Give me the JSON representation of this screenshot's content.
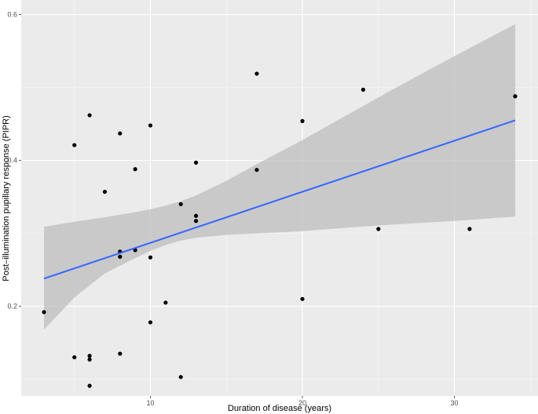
{
  "chart_data": {
    "type": "scatter",
    "xlabel": "Duration of disease (years)",
    "ylabel": "Post–illumination pupillary response (PIPR)",
    "xlim": [
      1.5,
      35.5
    ],
    "ylim": [
      0.077,
      0.62
    ],
    "x_ticks": [
      10,
      20,
      30
    ],
    "x_minor_ticks": [
      5,
      15,
      25,
      35
    ],
    "y_ticks": [
      0.2,
      0.4,
      0.6
    ],
    "y_minor_ticks": [
      0.1,
      0.3,
      0.5
    ],
    "x_tick_labels": [
      "10",
      "20",
      "30"
    ],
    "y_tick_labels": [
      "0.2",
      "0.4",
      "0.6"
    ],
    "grid": true,
    "points": [
      {
        "x": 3,
        "y": 0.192
      },
      {
        "x": 5,
        "y": 0.421
      },
      {
        "x": 5,
        "y": 0.13
      },
      {
        "x": 6,
        "y": 0.462
      },
      {
        "x": 6,
        "y": 0.132
      },
      {
        "x": 6,
        "y": 0.127
      },
      {
        "x": 6,
        "y": 0.091
      },
      {
        "x": 7,
        "y": 0.357
      },
      {
        "x": 8,
        "y": 0.437
      },
      {
        "x": 8,
        "y": 0.275
      },
      {
        "x": 8,
        "y": 0.268
      },
      {
        "x": 8,
        "y": 0.135
      },
      {
        "x": 9,
        "y": 0.388
      },
      {
        "x": 9,
        "y": 0.277
      },
      {
        "x": 10,
        "y": 0.448
      },
      {
        "x": 10,
        "y": 0.267
      },
      {
        "x": 10,
        "y": 0.178
      },
      {
        "x": 11,
        "y": 0.205
      },
      {
        "x": 12,
        "y": 0.34
      },
      {
        "x": 12,
        "y": 0.103
      },
      {
        "x": 13,
        "y": 0.397
      },
      {
        "x": 13,
        "y": 0.324
      },
      {
        "x": 13,
        "y": 0.317
      },
      {
        "x": 17,
        "y": 0.519
      },
      {
        "x": 17,
        "y": 0.387
      },
      {
        "x": 20,
        "y": 0.454
      },
      {
        "x": 20,
        "y": 0.21
      },
      {
        "x": 24,
        "y": 0.497
      },
      {
        "x": 25,
        "y": 0.306
      },
      {
        "x": 31,
        "y": 0.306
      },
      {
        "x": 34,
        "y": 0.488
      }
    ],
    "fit_line": {
      "x": [
        3,
        34
      ],
      "y": [
        0.238,
        0.455
      ],
      "color": "#3366FF"
    },
    "confidence_band": {
      "x": [
        3,
        5,
        7,
        9,
        10,
        11,
        12,
        13,
        15,
        17,
        20,
        23,
        26,
        30,
        34
      ],
      "lower": [
        0.168,
        0.212,
        0.245,
        0.266,
        0.276,
        0.284,
        0.29,
        0.294,
        0.298,
        0.3,
        0.303,
        0.308,
        0.312,
        0.317,
        0.323
      ],
      "upper": [
        0.309,
        0.316,
        0.322,
        0.329,
        0.333,
        0.338,
        0.344,
        0.352,
        0.372,
        0.395,
        0.428,
        0.463,
        0.498,
        0.543,
        0.587
      ]
    },
    "colors": {
      "panel_background": "#EBEBEB",
      "grid_major": "#FFFFFF",
      "band_fill": "#BEBEBE",
      "points": "#000000"
    }
  }
}
